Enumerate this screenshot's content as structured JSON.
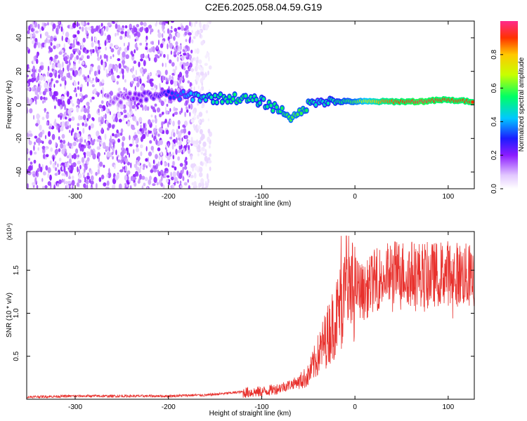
{
  "title": "C2E6.2025.058.04.59.G19",
  "chart_data": [
    {
      "type": "heatmap",
      "xlabel": "Height of straight line (km)",
      "ylabel": "Frequency (Hz)",
      "xlim": [
        -352,
        128
      ],
      "ylim": [
        -50,
        50
      ],
      "x_ticks": [
        -300,
        -200,
        -100,
        0,
        100
      ],
      "y_ticks": [
        -40,
        -20,
        0,
        20,
        40
      ],
      "grid": false,
      "colorbar": {
        "label": "Normalized spectral amplitude",
        "range": [
          0,
          1
        ],
        "ticks": [
          0.0,
          0.2,
          0.4,
          0.6,
          0.8
        ],
        "tick_labels": [
          "0.0",
          "0.2",
          "0.4",
          "0.6",
          "0.8"
        ],
        "colormap": "rainbow"
      },
      "regions": [
        {
          "description_x": [
            -352,
            -175
          ],
          "freq": [
            -50,
            50
          ],
          "amplitude": [
            0.05,
            0.2
          ]
        },
        {
          "description_x": [
            -175,
            -155
          ],
          "freq": [
            -50,
            50
          ],
          "amplitude": [
            0.02,
            0.06
          ]
        }
      ],
      "signal_trace": [
        {
          "x": -265,
          "f": 3,
          "a": 0.15
        },
        {
          "x": -210,
          "f": 6,
          "a": 0.25
        },
        {
          "x": -170,
          "f": 5,
          "a": 0.45
        },
        {
          "x": -150,
          "f": 4,
          "a": 0.5
        },
        {
          "x": -125,
          "f": 4,
          "a": 0.55
        },
        {
          "x": -100,
          "f": 2,
          "a": 0.5
        },
        {
          "x": -80,
          "f": -3,
          "a": 0.55
        },
        {
          "x": -65,
          "f": -8,
          "a": 0.6
        },
        {
          "x": -50,
          "f": 0,
          "a": 0.55
        },
        {
          "x": -40,
          "f": 3,
          "a": 0.45
        },
        {
          "x": -25,
          "f": 2,
          "a": 0.5
        },
        {
          "x": 0,
          "f": 2,
          "a": 0.6
        },
        {
          "x": 30,
          "f": 2,
          "a": 0.85
        },
        {
          "x": 70,
          "f": 2,
          "a": 0.95
        },
        {
          "x": 95,
          "f": 3,
          "a": 0.9
        },
        {
          "x": 128,
          "f": 2,
          "a": 0.9
        }
      ]
    },
    {
      "type": "line",
      "xlabel": "Height of straight line (km)",
      "ylabel": "SNR (10 * v/v)",
      "y_multiplier_label": "(x10⁴)",
      "xlim": [
        -352,
        128
      ],
      "ylim": [
        0,
        1.95
      ],
      "x_ticks": [
        -300,
        -200,
        -100,
        0,
        100
      ],
      "y_ticks": [
        0.5,
        1.0,
        1.5
      ],
      "y_tick_labels": [
        "0.5",
        "1.0",
        "1.5"
      ],
      "grid": false,
      "color": "#e8312d",
      "series": [
        {
          "x": [
            -352,
            -300,
            -250,
            -200,
            -175,
            -160,
            -140,
            -120,
            -100,
            -85,
            -70,
            -60,
            -50,
            -40,
            -30,
            -20,
            -15,
            -10,
            -5,
            0,
            10,
            20,
            30,
            40,
            60,
            80,
            100,
            128
          ],
          "y": [
            0.03,
            0.04,
            0.04,
            0.04,
            0.05,
            0.05,
            0.07,
            0.09,
            0.1,
            0.13,
            0.18,
            0.22,
            0.3,
            0.55,
            0.8,
            1.05,
            1.2,
            1.3,
            1.35,
            1.4,
            1.3,
            1.45,
            1.5,
            1.55,
            1.55,
            1.52,
            1.55,
            1.5
          ]
        }
      ]
    }
  ]
}
